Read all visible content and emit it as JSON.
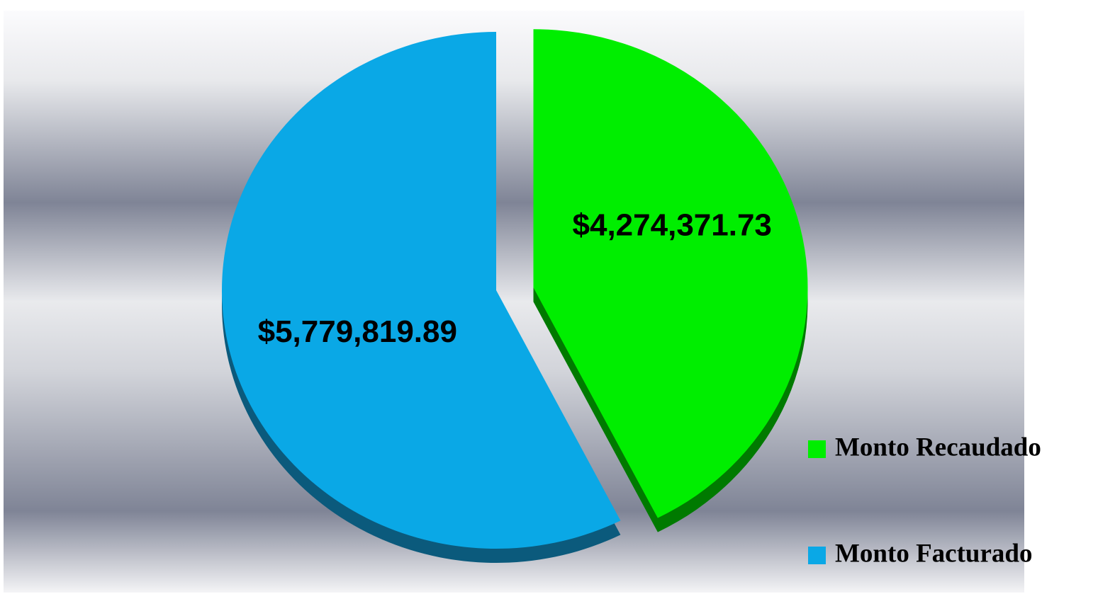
{
  "chart_data": {
    "type": "pie",
    "categories": [
      "Monto Recaudado",
      "Monto Facturado"
    ],
    "values": [
      4274371.73,
      5779819.89
    ],
    "value_labels": [
      "$4,274,371.73",
      "$5,779,819.89"
    ],
    "colors": [
      "#00ee00",
      "#0aa8e6"
    ],
    "depth_colors": [
      "#007a00",
      "#0b5a7c"
    ],
    "legend": "right"
  }
}
